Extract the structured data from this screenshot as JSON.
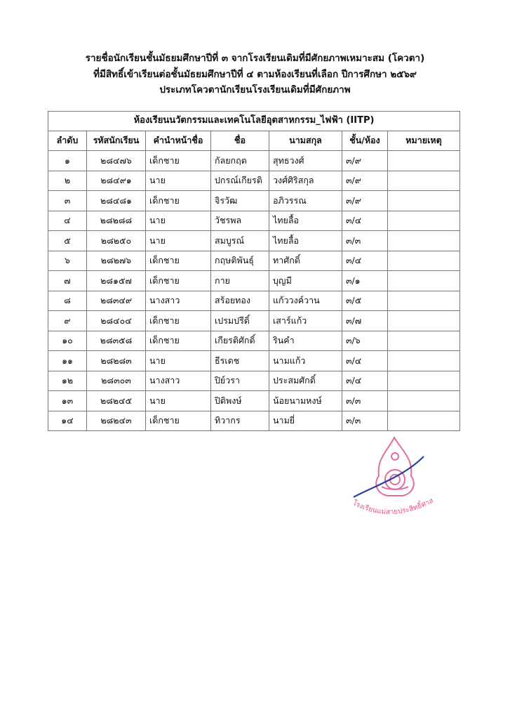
{
  "document": {
    "title_lines": [
      "รายชื่อนักเรียนชั้นมัธยมศึกษาปีที่ ๓ จากโรงเรียนเดิมที่มีศักยภาพเหมาะสม (โควตา)",
      "ที่มีสิทธิ์เข้าเรียนต่อชั้นมัธยมศึกษาปีที่ ๔ ตามห้องเรียนที่เลือก ปีการศึกษา ๒๕๖๙",
      "ประเภทโควตานักเรียนโรงเรียนเดิมที่มีศักยภาพ"
    ]
  },
  "table": {
    "caption": "ห้องเรียนนวัตกรรมและเทคโนโลยีอุตสาหกรรม_ไฟฟ้า (IITP)",
    "headers": [
      "ลำดับ",
      "รหัสนักเรียน",
      "คำนำหน้าชื่อ",
      "ชื่อ",
      "นามสกุล",
      "ชั้น/ห้อง",
      "หมายเหตุ"
    ],
    "rows": [
      [
        "๑",
        "๒๘๔๗๖",
        "เด็กชาย",
        "กัลยกฤต",
        "สุทธวงศ์",
        "๓/๙",
        ""
      ],
      [
        "๒",
        "๒๘๔๙๑",
        "นาย",
        "ปกรณ์เกียรติ",
        "วงศ์ศิริสกุล",
        "๓/๙",
        ""
      ],
      [
        "๓",
        "๒๘๔๘๑",
        "เด็กชาย",
        "จิรวัฒ",
        "อภิวรรณ",
        "๓/๙",
        ""
      ],
      [
        "๔",
        "๒๘๒๘๘",
        "นาย",
        "วัชรพล",
        "ไทยลื้อ",
        "๓/๔",
        ""
      ],
      [
        "๕",
        "๒๘๒๕๐",
        "นาย",
        "สมบูรณ์",
        "ไทยลื้อ",
        "๓/๓",
        ""
      ],
      [
        "๖",
        "๒๘๒๗๖",
        "เด็กชาย",
        "กฤษติพันธุ์",
        "ทาศักดิ์",
        "๓/๔",
        ""
      ],
      [
        "๗",
        "๒๘๑๕๗",
        "เด็กชาย",
        "กาย",
        "บุญมี",
        "๓/๑",
        ""
      ],
      [
        "๘",
        "๒๘๓๔๙",
        "นางสาว",
        "สร้อยทอง",
        "แก้ววงค์วาน",
        "๓/๕",
        ""
      ],
      [
        "๙",
        "๒๘๔๐๔",
        "เด็กชาย",
        "เปรมปรีดิ์",
        "เสาร์แก้ว",
        "๓/๗",
        ""
      ],
      [
        "๑๐",
        "๒๘๓๕๘",
        "เด็กชาย",
        "เกียรติศักดิ์",
        "รินคำ",
        "๓/๖",
        ""
      ],
      [
        "๑๑",
        "๒๘๒๘๓",
        "นาย",
        "ธีรเดช",
        "นามแก้ว",
        "๓/๔",
        ""
      ],
      [
        "๑๒",
        "๒๘๓๐๓",
        "นางสาว",
        "ปิย์วรา",
        "ประสมศักดิ์",
        "๓/๔",
        ""
      ],
      [
        "๑๓",
        "๒๘๒๔๕",
        "นาย",
        "ปิติพงษ์",
        "น้อยนามหงษ์",
        "๓/๓",
        ""
      ],
      [
        "๑๔",
        "๒๘๒๔๓",
        "เด็กชาย",
        "ทิวากร",
        "นามยี่",
        "๓/๓",
        ""
      ]
    ]
  },
  "stamp": {
    "text": "โรงเรียนแม่สายประสิทธิ์ศาสตร์",
    "color": "#e0508f",
    "signature_color": "#2a3f9e"
  }
}
